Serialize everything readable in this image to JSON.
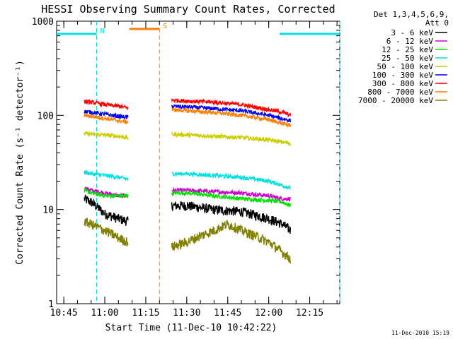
{
  "chart_data": {
    "type": "line",
    "title": "HESSI Observing Summary Count Rates, Corrected",
    "xlabel": "Start Time (11-Dec-10 10:42:22)",
    "ylabel": "Corrected Count Rate (s⁻¹ detector⁻¹)",
    "y_scale": "log",
    "ylim": [
      1,
      1000
    ],
    "y_ticks": [
      {
        "value": 1,
        "label": "1"
      },
      {
        "value": 10,
        "label": "10"
      },
      {
        "value": 100,
        "label": "100"
      },
      {
        "value": 1000,
        "label": "1000"
      }
    ],
    "xlim": [
      "10:42:22",
      "12:26:00"
    ],
    "x_ticks": [
      "10:45",
      "11:00",
      "11:15",
      "11:30",
      "11:45",
      "12:00",
      "12:15"
    ],
    "legend_title_lines": [
      "Det 1,3,4,5,6,9,",
      "Att 0"
    ],
    "legend_position": "right, outside plot",
    "date_stamp": "11-Dec-2010 15:19",
    "series": [
      {
        "name": "3 - 6 keV",
        "color": "#000000",
        "segments": [
          {
            "x": [
              "10:52:30",
              "10:55",
              "11:00",
              "11:05",
              "11:08:30"
            ],
            "y": [
              13,
              12,
              9,
              8,
              7.5
            ]
          },
          {
            "x": [
              "11:24:30",
              "11:30",
              "11:40",
              "11:50",
              "12:00",
              "12:05",
              "12:08"
            ],
            "y": [
              11,
              11,
              10,
              9.5,
              8,
              7,
              6
            ]
          }
        ]
      },
      {
        "name": "6 - 12 keV",
        "color": "#d000d0",
        "segments": [
          {
            "x": [
              "10:52:30",
              "10:55",
              "11:00",
              "11:05",
              "11:08:30"
            ],
            "y": [
              17,
              16,
              15,
              14,
              14
            ]
          },
          {
            "x": [
              "11:24:30",
              "11:30",
              "11:40",
              "11:50",
              "12:00",
              "12:05",
              "12:08"
            ],
            "y": [
              16,
              16,
              15.5,
              15,
              14,
              13,
              13
            ]
          }
        ]
      },
      {
        "name": "12 - 25 keV",
        "color": "#00e000",
        "segments": [
          {
            "x": [
              "10:52:30",
              "10:55",
              "11:00",
              "11:05",
              "11:08:30"
            ],
            "y": [
              16,
              15,
              14,
              14,
              14
            ]
          },
          {
            "x": [
              "11:24:30",
              "11:30",
              "11:40",
              "11:50",
              "12:00",
              "12:05",
              "12:08"
            ],
            "y": [
              15,
              15,
              14,
              13,
              12.5,
              12,
              11
            ]
          }
        ]
      },
      {
        "name": "25 - 50 keV",
        "color": "#00e0e0",
        "segments": [
          {
            "x": [
              "10:52:30",
              "10:55",
              "11:00",
              "11:05",
              "11:08:30"
            ],
            "y": [
              25,
              24,
              23,
              22,
              21
            ]
          },
          {
            "x": [
              "11:24:30",
              "11:30",
              "11:40",
              "11:50",
              "12:00",
              "12:05",
              "12:08"
            ],
            "y": [
              24,
              24,
              23,
              22,
              20,
              18,
              17
            ]
          }
        ]
      },
      {
        "name": "50 - 100 keV",
        "color": "#cccc00",
        "segments": [
          {
            "x": [
              "10:52:30",
              "10:55",
              "11:00",
              "11:05",
              "11:08:30"
            ],
            "y": [
              64,
              63,
              62,
              60,
              58
            ]
          },
          {
            "x": [
              "11:24:30",
              "11:30",
              "11:40",
              "11:50",
              "12:00",
              "12:05",
              "12:08"
            ],
            "y": [
              63,
              62,
              60,
              58,
              55,
              52,
              50
            ]
          }
        ]
      },
      {
        "name": "100 - 300 keV",
        "color": "#0000ff",
        "segments": [
          {
            "x": [
              "10:52:30",
              "10:55",
              "11:00",
              "11:05",
              "11:08:30"
            ],
            "y": [
              110,
              108,
              103,
              98,
              95
            ]
          },
          {
            "x": [
              "11:24:30",
              "11:30",
              "11:40",
              "11:50",
              "12:00",
              "12:05",
              "12:08"
            ],
            "y": [
              125,
              123,
              118,
              112,
              100,
              92,
              88
            ]
          }
        ]
      },
      {
        "name": "300 - 800 keV",
        "color": "#ff0000",
        "segments": [
          {
            "x": [
              "10:52:30",
              "10:55",
              "11:00",
              "11:05",
              "11:08:30"
            ],
            "y": [
              140,
              138,
              130,
              125,
              120
            ]
          },
          {
            "x": [
              "11:24:30",
              "11:30",
              "11:40",
              "11:50",
              "12:00",
              "12:05",
              "12:08"
            ],
            "y": [
              145,
              142,
              138,
              130,
              115,
              108,
              100
            ]
          }
        ]
      },
      {
        "name": "800 - 7000 keV",
        "color": "#ff8000",
        "segments": [
          {
            "x": [
              "10:52:30",
              "10:55",
              "11:00",
              "11:05",
              "11:08:30"
            ],
            "y": [
              100,
              98,
              93,
              88,
              85
            ]
          },
          {
            "x": [
              "11:24:30",
              "11:30",
              "11:40",
              "11:50",
              "12:00",
              "12:05",
              "12:08"
            ],
            "y": [
              115,
              112,
              107,
              100,
              90,
              82,
              78
            ]
          }
        ]
      },
      {
        "name": "7000 - 20000 keV",
        "color": "#808000",
        "segments": [
          {
            "x": [
              "10:52:30",
              "10:55",
              "11:00",
              "11:05",
              "11:08:30"
            ],
            "y": [
              7.5,
              7,
              6,
              5,
              4.5
            ]
          },
          {
            "x": [
              "11:24:30",
              "11:30",
              "11:40",
              "11:45",
              "11:50",
              "12:00",
              "12:05",
              "12:08"
            ],
            "y": [
              4,
              4.5,
              6,
              7,
              6,
              4.5,
              3.5,
              3
            ]
          }
        ]
      }
    ],
    "annotations": [
      {
        "text": "N",
        "color": "#00e0e0",
        "kind": "night",
        "periods": [
          [
            "10:42:22",
            "10:57:00"
          ],
          [
            "12:04:00",
            "12:26:00"
          ]
        ]
      },
      {
        "text": "S",
        "color": "#ff8000",
        "kind": "saa",
        "periods": [
          [
            "11:09:00",
            "11:20:00"
          ]
        ]
      }
    ]
  }
}
